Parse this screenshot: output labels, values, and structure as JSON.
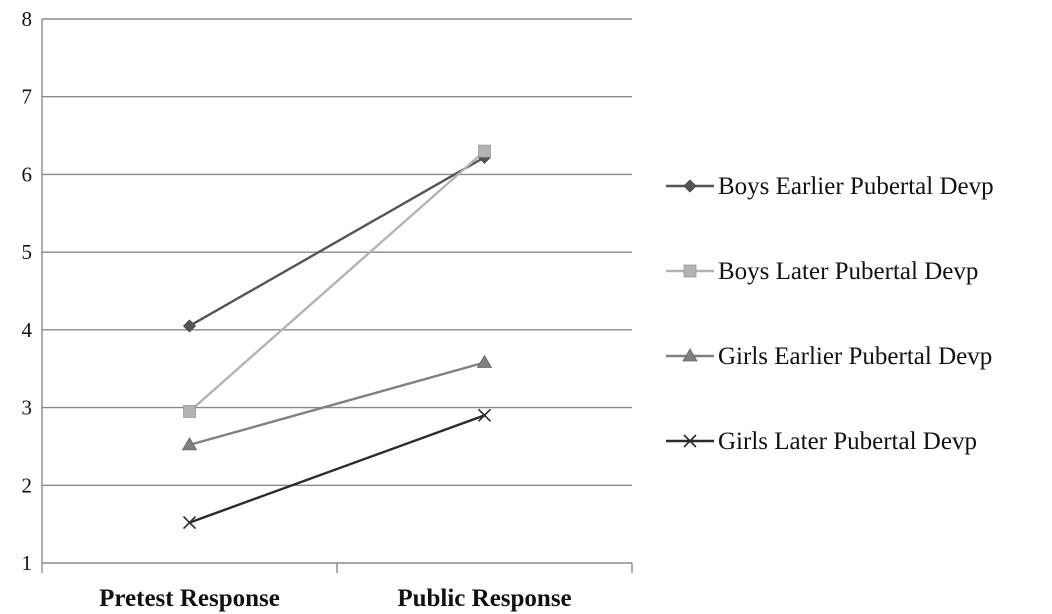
{
  "chart_data": {
    "type": "line",
    "title": "",
    "xlabel": "",
    "ylabel": "",
    "categories": [
      "Pretest Response",
      "Public Response"
    ],
    "ylim": [
      1,
      8
    ],
    "yticks": [
      1,
      2,
      3,
      4,
      5,
      6,
      7,
      8
    ],
    "grid": true,
    "legend_position": "right",
    "series": [
      {
        "name": "Boys Earlier Pubertal Devp",
        "values": [
          4.05,
          6.22
        ],
        "color": "#555555",
        "marker": "diamond"
      },
      {
        "name": "Boys Later Pubertal Devp",
        "values": [
          2.95,
          6.3
        ],
        "color": "#b3b3b3",
        "marker": "square"
      },
      {
        "name": "Girls Earlier Pubertal Devp",
        "values": [
          2.52,
          3.58
        ],
        "color": "#808080",
        "marker": "triangle"
      },
      {
        "name": "Girls Later Pubertal Devp",
        "values": [
          1.52,
          2.9
        ],
        "color": "#2b2b2b",
        "marker": "x"
      }
    ]
  }
}
